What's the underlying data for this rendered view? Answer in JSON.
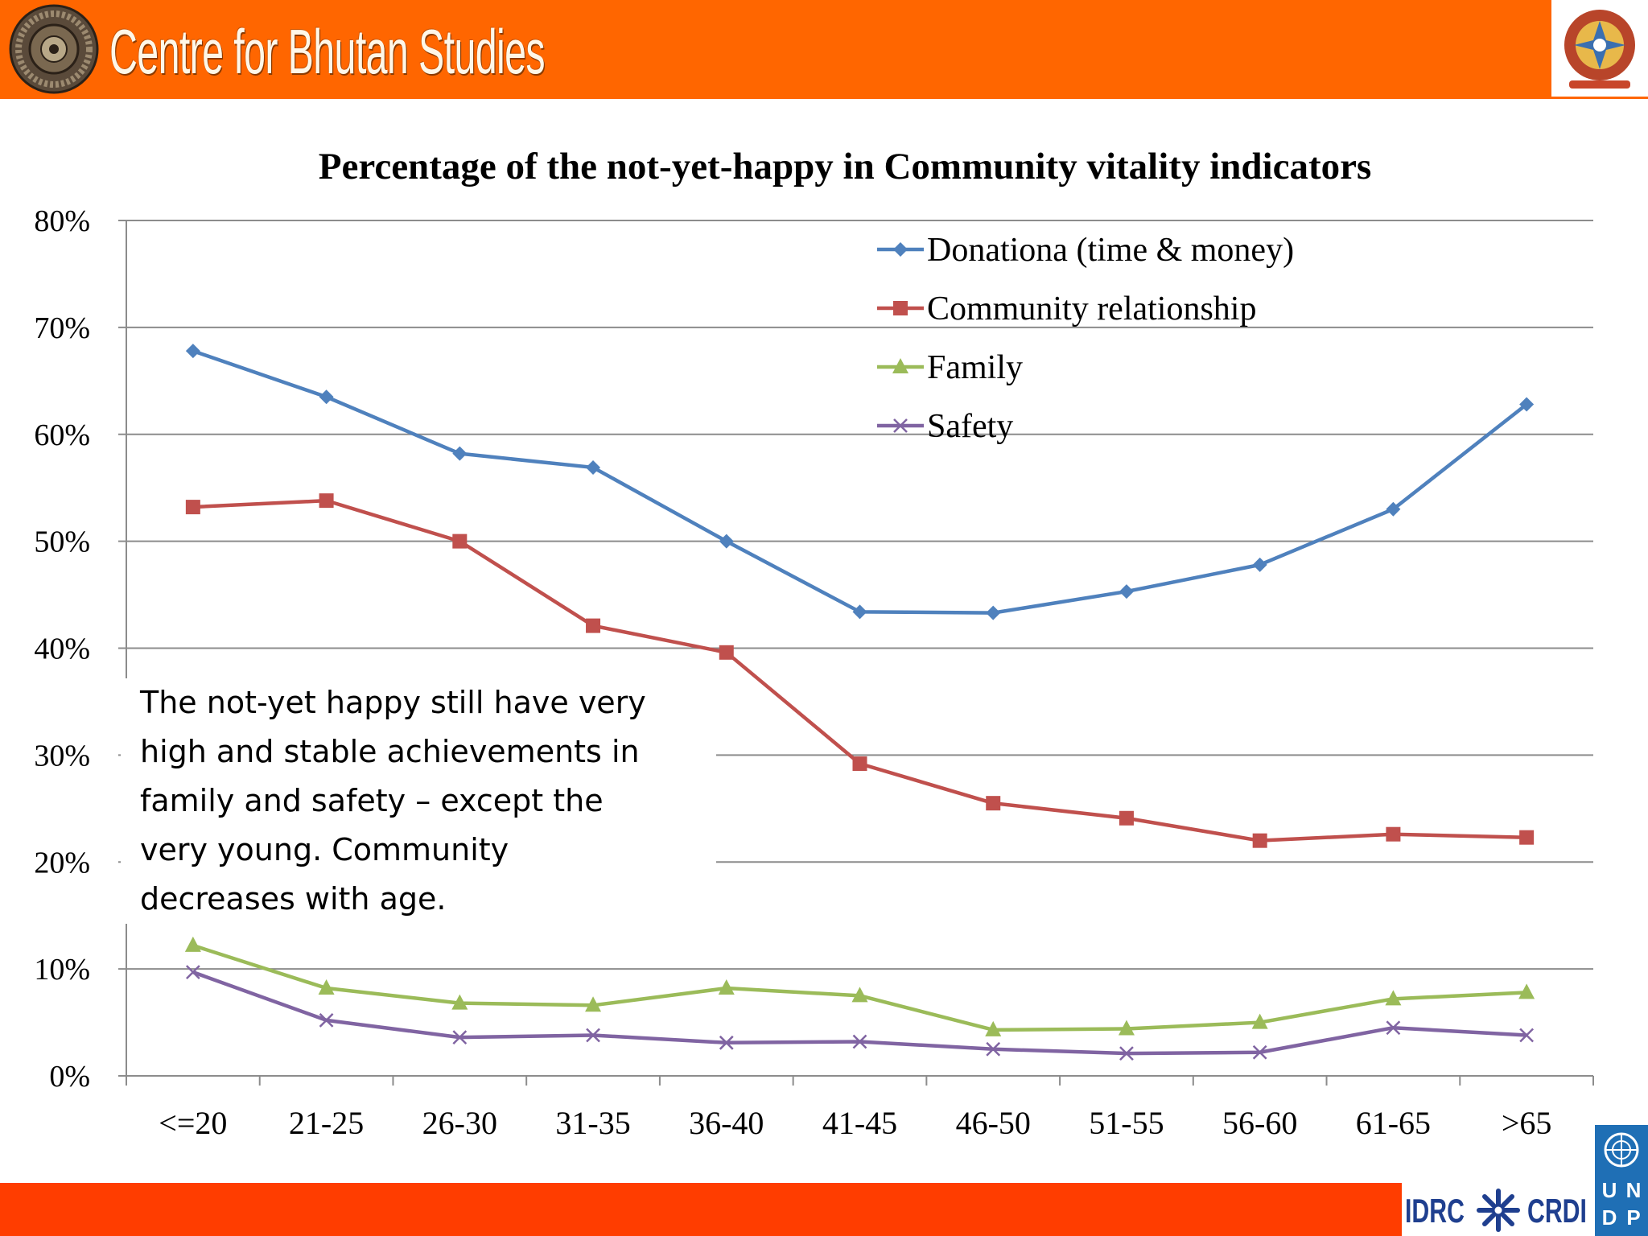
{
  "header": {
    "title": "Centre for Bhutan Studies",
    "logo_icon": "dharma-wheel-icon",
    "emblem_icon": "bhutan-emblem-icon",
    "bar_color": "#ff6600"
  },
  "footer": {
    "idrc_left": "IDRC",
    "idrc_right": "CRDI",
    "undp_letters": [
      "U",
      "N",
      "D",
      "P"
    ],
    "bar_color": "#ff3d00"
  },
  "annotation": {
    "lines": [
      "The not-yet happy still have very",
      "high and stable achievements in",
      "family and safety – except the",
      "very young. Community",
      "decreases with age."
    ]
  },
  "chart_data": {
    "type": "line",
    "title": "Percentage of the not-yet-happy in Community vitality indicators",
    "xlabel": "",
    "ylabel": "",
    "ylim": [
      0,
      0.8
    ],
    "ytick_labels": [
      "0%",
      "10%",
      "20%",
      "30%",
      "40%",
      "50%",
      "60%",
      "70%",
      "80%"
    ],
    "grid": true,
    "legend_position": "top-right",
    "categories": [
      "<=20",
      "21-25",
      "26-30",
      "31-35",
      "36-40",
      "41-45",
      "46-50",
      "51-55",
      "56-60",
      "61-65",
      ">65"
    ],
    "series": [
      {
        "name": "Donationa (time & money)",
        "marker": "diamond",
        "color": "#4f81bd",
        "values": [
          0.678,
          0.635,
          0.582,
          0.569,
          0.5,
          0.434,
          0.433,
          0.453,
          0.478,
          0.53,
          0.628
        ]
      },
      {
        "name": "Community relationship",
        "marker": "square",
        "color": "#c0504d",
        "values": [
          0.532,
          0.538,
          0.5,
          0.421,
          0.396,
          0.292,
          0.255,
          0.241,
          0.22,
          0.226,
          0.223
        ]
      },
      {
        "name": "Family",
        "marker": "triangle",
        "color": "#9bbb59",
        "values": [
          0.122,
          0.082,
          0.068,
          0.066,
          0.082,
          0.075,
          0.043,
          0.044,
          0.05,
          0.072,
          0.078
        ]
      },
      {
        "name": "Safety",
        "marker": "x",
        "color": "#8064a2",
        "values": [
          0.097,
          0.052,
          0.036,
          0.038,
          0.031,
          0.032,
          0.025,
          0.021,
          0.022,
          0.045,
          0.038
        ]
      }
    ]
  }
}
